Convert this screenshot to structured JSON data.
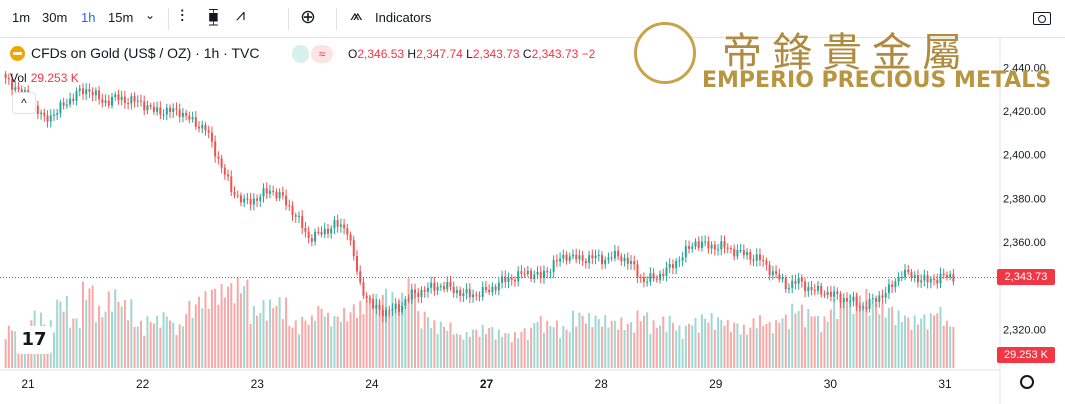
{
  "toolbar": {
    "intervals": [
      "1m",
      "30m",
      "1h",
      "15m"
    ],
    "active_interval": "1h",
    "indicators_label": "Indicators",
    "icons": [
      "chevron-down-icon",
      "bars-icon",
      "candles-icon",
      "area-icon",
      "plus-circle-icon",
      "indicators-icon",
      "camera-icon"
    ]
  },
  "legend": {
    "symbol": "CFDs on Gold (US$ / OZ) · 1h · TVC",
    "o_label": "O",
    "o_value": "2,346.53",
    "h_label": "H",
    "h_value": "2,347.74",
    "l_label": "L",
    "l_value": "2,343.73",
    "c_label": "C",
    "c_value": "2,343.73",
    "change": "−2",
    "vol_label": "Vol",
    "vol_value": "29.253 K",
    "collapse_glyph": "^"
  },
  "brand": {
    "chinese": "帝鋒貴金屬",
    "english": "EMPERIO PRECIOUS METALS"
  },
  "tv_logo": "17",
  "colors": {
    "up": "#26a69a",
    "down": "#ef5350",
    "up_vol": "#9fd8d2",
    "down_vol": "#f7a9a7",
    "gold": "#b8953f"
  },
  "chart_data": {
    "type": "candlestick",
    "y_ticks": [
      "2,440.00",
      "2,420.00",
      "2,400.00",
      "2,380.00",
      "2,360.00",
      "2,320.00"
    ],
    "x_ticks": [
      "21",
      "22",
      "23",
      "24",
      "27",
      "28",
      "29",
      "30",
      "31"
    ],
    "ylim": [
      2316,
      2448
    ],
    "last_price": "2,343.73",
    "last_price_value": 2343.73,
    "last_volume": "29.253 K",
    "close_path": [
      [
        0,
        2434
      ],
      [
        4,
        2430
      ],
      [
        8,
        2424
      ],
      [
        12,
        2416
      ],
      [
        16,
        2420
      ],
      [
        22,
        2428
      ],
      [
        26,
        2430
      ],
      [
        30,
        2424
      ],
      [
        34,
        2426
      ],
      [
        38,
        2425
      ],
      [
        42,
        2424
      ],
      [
        46,
        2420
      ],
      [
        50,
        2420
      ],
      [
        54,
        2420
      ],
      [
        58,
        2415
      ],
      [
        62,
        2412
      ],
      [
        66,
        2398
      ],
      [
        70,
        2384
      ],
      [
        74,
        2378
      ],
      [
        78,
        2380
      ],
      [
        82,
        2384
      ],
      [
        86,
        2380
      ],
      [
        90,
        2372
      ],
      [
        94,
        2362
      ],
      [
        98,
        2364
      ],
      [
        102,
        2368
      ],
      [
        106,
        2366
      ],
      [
        110,
        2340
      ],
      [
        114,
        2330
      ],
      [
        118,
        2328
      ],
      [
        122,
        2330
      ],
      [
        126,
        2336
      ],
      [
        130,
        2338
      ],
      [
        134,
        2340
      ],
      [
        138,
        2339
      ],
      [
        142,
        2336
      ],
      [
        146,
        2336
      ],
      [
        150,
        2338
      ],
      [
        154,
        2342
      ],
      [
        158,
        2344
      ],
      [
        162,
        2346
      ],
      [
        166,
        2344
      ],
      [
        170,
        2350
      ],
      [
        174,
        2354
      ],
      [
        178,
        2352
      ],
      [
        182,
        2353
      ],
      [
        186,
        2352
      ],
      [
        190,
        2354
      ],
      [
        194,
        2350
      ],
      [
        198,
        2342
      ],
      [
        202,
        2344
      ],
      [
        206,
        2348
      ],
      [
        210,
        2354
      ],
      [
        214,
        2360
      ],
      [
        218,
        2358
      ],
      [
        222,
        2358
      ],
      [
        226,
        2356
      ],
      [
        230,
        2354
      ],
      [
        234,
        2352
      ],
      [
        238,
        2346
      ],
      [
        242,
        2340
      ],
      [
        246,
        2342
      ],
      [
        250,
        2338
      ],
      [
        254,
        2337
      ],
      [
        258,
        2335
      ],
      [
        262,
        2333
      ],
      [
        266,
        2330
      ],
      [
        270,
        2334
      ],
      [
        274,
        2338
      ],
      [
        278,
        2346
      ],
      [
        282,
        2344
      ],
      [
        286,
        2342
      ],
      [
        290,
        2344
      ],
      [
        294,
        2344
      ]
    ],
    "volume": [
      36,
      30,
      48,
      40,
      60,
      44,
      72,
      52,
      66,
      58,
      40,
      44,
      48,
      38,
      56,
      64,
      70,
      74,
      76,
      52,
      58,
      60,
      40,
      44,
      54,
      46,
      50,
      56,
      62,
      68,
      64,
      76,
      48,
      40,
      38,
      30,
      34,
      36,
      32,
      30,
      34,
      44,
      40,
      36,
      48,
      46,
      44,
      42,
      40,
      48,
      40,
      44,
      36,
      42,
      46,
      44,
      40,
      36,
      44,
      40,
      46,
      54,
      50,
      44,
      58,
      62,
      66,
      58,
      54,
      48,
      44,
      46,
      52,
      40
    ]
  }
}
